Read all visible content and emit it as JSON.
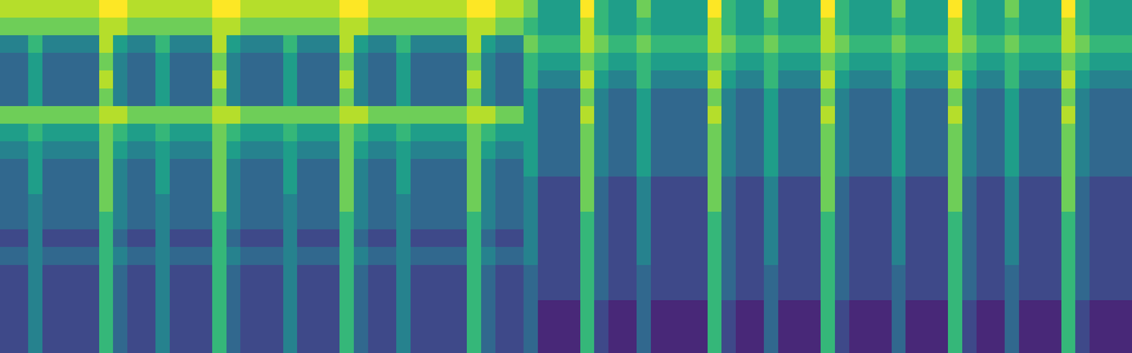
{
  "chart_data": {
    "type": "heatmap",
    "color": "viridis",
    "tick_labels": false,
    "zlim": [
      0,
      9
    ],
    "values": [
      [
        8,
        8,
        8,
        8,
        8,
        8,
        8,
        9,
        9,
        8,
        8,
        8,
        8,
        8,
        8,
        9,
        9,
        8,
        8,
        8,
        8,
        8,
        8,
        8,
        9,
        9,
        8,
        8,
        8,
        8,
        8,
        8,
        8,
        9,
        9,
        8,
        8,
        7,
        5,
        5,
        5,
        9,
        6,
        5,
        5,
        7,
        5,
        5,
        5,
        5,
        9,
        6,
        5,
        5,
        7,
        5,
        5,
        5,
        9,
        6,
        5,
        5,
        5,
        7,
        5,
        5,
        5,
        9,
        6,
        5,
        5,
        7,
        5,
        5,
        5,
        9,
        6,
        5,
        5,
        5
      ],
      [
        7,
        7,
        7,
        7,
        7,
        7,
        7,
        8,
        8,
        7,
        7,
        7,
        7,
        7,
        7,
        8,
        8,
        7,
        7,
        7,
        7,
        7,
        7,
        7,
        8,
        8,
        7,
        7,
        7,
        7,
        7,
        7,
        7,
        8,
        8,
        7,
        7,
        6,
        5,
        5,
        5,
        8,
        6,
        5,
        5,
        6,
        5,
        5,
        5,
        5,
        8,
        6,
        5,
        5,
        6,
        5,
        5,
        5,
        8,
        6,
        5,
        5,
        5,
        6,
        5,
        5,
        5,
        8,
        6,
        5,
        5,
        6,
        5,
        5,
        5,
        8,
        6,
        5,
        5,
        5
      ],
      [
        4,
        4,
        6,
        4,
        4,
        4,
        4,
        8,
        5,
        4,
        4,
        6,
        4,
        4,
        4,
        8,
        5,
        4,
        4,
        4,
        6,
        4,
        4,
        4,
        8,
        5,
        4,
        4,
        6,
        4,
        4,
        4,
        4,
        8,
        5,
        4,
        4,
        7,
        6,
        6,
        6,
        8,
        7,
        6,
        6,
        7,
        6,
        6,
        6,
        6,
        8,
        7,
        6,
        6,
        7,
        6,
        6,
        6,
        8,
        7,
        6,
        6,
        6,
        7,
        6,
        6,
        6,
        8,
        7,
        6,
        6,
        7,
        6,
        6,
        6,
        8,
        7,
        6,
        6,
        6
      ],
      [
        3,
        3,
        5,
        3,
        3,
        3,
        3,
        7,
        4,
        3,
        3,
        5,
        3,
        3,
        3,
        7,
        4,
        3,
        3,
        3,
        5,
        3,
        3,
        3,
        7,
        4,
        3,
        3,
        5,
        3,
        3,
        3,
        3,
        7,
        4,
        3,
        3,
        6,
        5,
        5,
        5,
        7,
        6,
        5,
        5,
        6,
        5,
        5,
        5,
        5,
        7,
        6,
        5,
        5,
        6,
        5,
        5,
        5,
        7,
        6,
        5,
        5,
        5,
        6,
        5,
        5,
        5,
        7,
        6,
        5,
        5,
        6,
        5,
        5,
        5,
        7,
        6,
        5,
        5,
        5
      ],
      [
        3,
        3,
        5,
        3,
        3,
        3,
        3,
        8,
        4,
        3,
        3,
        5,
        3,
        3,
        3,
        8,
        4,
        3,
        3,
        3,
        5,
        3,
        3,
        3,
        8,
        4,
        3,
        3,
        5,
        3,
        3,
        3,
        3,
        8,
        4,
        3,
        3,
        6,
        4,
        4,
        4,
        8,
        5,
        4,
        4,
        6,
        4,
        4,
        4,
        4,
        8,
        5,
        4,
        4,
        6,
        4,
        4,
        4,
        8,
        5,
        4,
        4,
        4,
        6,
        4,
        4,
        4,
        8,
        5,
        4,
        4,
        6,
        4,
        4,
        4,
        8,
        5,
        4,
        4,
        4
      ],
      [
        3,
        3,
        5,
        3,
        3,
        3,
        3,
        7,
        4,
        3,
        3,
        5,
        3,
        3,
        3,
        7,
        4,
        3,
        3,
        3,
        5,
        3,
        3,
        3,
        7,
        4,
        3,
        3,
        5,
        3,
        3,
        3,
        3,
        7,
        4,
        3,
        3,
        5,
        3,
        3,
        3,
        7,
        4,
        3,
        3,
        5,
        3,
        3,
        3,
        3,
        7,
        4,
        3,
        3,
        5,
        3,
        3,
        3,
        7,
        4,
        3,
        3,
        3,
        5,
        3,
        3,
        3,
        7,
        4,
        3,
        3,
        5,
        3,
        3,
        3,
        7,
        4,
        3,
        3,
        3
      ],
      [
        7,
        7,
        7,
        7,
        7,
        7,
        7,
        8,
        8,
        7,
        7,
        7,
        7,
        7,
        7,
        8,
        8,
        7,
        7,
        7,
        7,
        7,
        7,
        7,
        8,
        8,
        7,
        7,
        7,
        7,
        7,
        7,
        7,
        8,
        8,
        7,
        7,
        5,
        3,
        3,
        3,
        8,
        4,
        3,
        3,
        5,
        3,
        3,
        3,
        3,
        8,
        4,
        3,
        3,
        5,
        3,
        3,
        3,
        8,
        4,
        3,
        3,
        3,
        5,
        3,
        3,
        3,
        8,
        4,
        3,
        3,
        5,
        3,
        3,
        3,
        8,
        4,
        3,
        3,
        3
      ],
      [
        5,
        5,
        6,
        5,
        5,
        5,
        5,
        7,
        6,
        5,
        5,
        6,
        5,
        5,
        5,
        7,
        6,
        5,
        5,
        5,
        6,
        5,
        5,
        5,
        7,
        6,
        5,
        5,
        6,
        5,
        5,
        5,
        5,
        7,
        6,
        5,
        5,
        5,
        3,
        3,
        3,
        7,
        4,
        3,
        3,
        5,
        3,
        3,
        3,
        3,
        7,
        4,
        3,
        3,
        5,
        3,
        3,
        3,
        7,
        4,
        3,
        3,
        3,
        5,
        3,
        3,
        3,
        7,
        4,
        3,
        3,
        5,
        3,
        3,
        3,
        7,
        4,
        3,
        3,
        3
      ],
      [
        4,
        4,
        5,
        4,
        4,
        4,
        4,
        7,
        5,
        4,
        4,
        5,
        4,
        4,
        4,
        7,
        5,
        4,
        4,
        4,
        5,
        4,
        4,
        4,
        7,
        5,
        4,
        4,
        5,
        4,
        4,
        4,
        4,
        7,
        5,
        4,
        4,
        5,
        3,
        3,
        3,
        7,
        4,
        3,
        3,
        5,
        3,
        3,
        3,
        3,
        7,
        4,
        3,
        3,
        5,
        3,
        3,
        3,
        7,
        4,
        3,
        3,
        3,
        5,
        3,
        3,
        3,
        7,
        4,
        3,
        3,
        5,
        3,
        3,
        3,
        7,
        4,
        3,
        3,
        3
      ],
      [
        3,
        3,
        5,
        3,
        3,
        3,
        3,
        7,
        4,
        3,
        3,
        5,
        3,
        3,
        3,
        7,
        4,
        3,
        3,
        3,
        5,
        3,
        3,
        3,
        7,
        4,
        3,
        3,
        5,
        3,
        3,
        3,
        3,
        7,
        4,
        3,
        3,
        5,
        3,
        3,
        3,
        7,
        4,
        3,
        3,
        5,
        3,
        3,
        3,
        3,
        7,
        4,
        3,
        3,
        5,
        3,
        3,
        3,
        7,
        4,
        3,
        3,
        3,
        5,
        3,
        3,
        3,
        7,
        4,
        3,
        3,
        5,
        3,
        3,
        3,
        7,
        4,
        3,
        3,
        3
      ],
      [
        3,
        3,
        5,
        3,
        3,
        3,
        3,
        7,
        4,
        3,
        3,
        5,
        3,
        3,
        3,
        7,
        4,
        3,
        3,
        3,
        5,
        3,
        3,
        3,
        7,
        4,
        3,
        3,
        5,
        3,
        3,
        3,
        3,
        7,
        4,
        3,
        3,
        4,
        2,
        2,
        2,
        7,
        3,
        2,
        2,
        4,
        2,
        2,
        2,
        2,
        7,
        3,
        2,
        2,
        4,
        2,
        2,
        2,
        7,
        3,
        2,
        2,
        2,
        4,
        2,
        2,
        2,
        7,
        3,
        2,
        2,
        4,
        2,
        2,
        2,
        7,
        3,
        2,
        2,
        2
      ],
      [
        3,
        3,
        4,
        3,
        3,
        3,
        3,
        7,
        4,
        3,
        3,
        4,
        3,
        3,
        3,
        7,
        4,
        3,
        3,
        3,
        4,
        3,
        3,
        3,
        7,
        4,
        3,
        3,
        4,
        3,
        3,
        3,
        3,
        7,
        4,
        3,
        3,
        4,
        2,
        2,
        2,
        7,
        3,
        2,
        2,
        4,
        2,
        2,
        2,
        2,
        7,
        3,
        2,
        2,
        4,
        2,
        2,
        2,
        7,
        3,
        2,
        2,
        2,
        4,
        2,
        2,
        2,
        7,
        3,
        2,
        2,
        4,
        2,
        2,
        2,
        7,
        3,
        2,
        2,
        2
      ],
      [
        3,
        3,
        4,
        3,
        3,
        3,
        3,
        6,
        4,
        3,
        3,
        4,
        3,
        3,
        3,
        6,
        4,
        3,
        3,
        3,
        4,
        3,
        3,
        3,
        6,
        4,
        3,
        3,
        4,
        3,
        3,
        3,
        3,
        6,
        4,
        3,
        3,
        4,
        2,
        2,
        2,
        6,
        3,
        2,
        2,
        4,
        2,
        2,
        2,
        2,
        6,
        3,
        2,
        2,
        4,
        2,
        2,
        2,
        6,
        3,
        2,
        2,
        2,
        4,
        2,
        2,
        2,
        6,
        3,
        2,
        2,
        4,
        2,
        2,
        2,
        6,
        3,
        2,
        2,
        2
      ],
      [
        2,
        2,
        4,
        2,
        2,
        2,
        2,
        6,
        3,
        2,
        2,
        4,
        2,
        2,
        2,
        6,
        3,
        2,
        2,
        2,
        4,
        2,
        2,
        2,
        6,
        3,
        2,
        2,
        4,
        2,
        2,
        2,
        2,
        6,
        3,
        2,
        2,
        4,
        2,
        2,
        2,
        6,
        3,
        2,
        2,
        4,
        2,
        2,
        2,
        2,
        6,
        3,
        2,
        2,
        4,
        2,
        2,
        2,
        6,
        3,
        2,
        2,
        2,
        4,
        2,
        2,
        2,
        6,
        3,
        2,
        2,
        4,
        2,
        2,
        2,
        6,
        3,
        2,
        2,
        2
      ],
      [
        3,
        3,
        4,
        3,
        3,
        3,
        3,
        6,
        4,
        3,
        3,
        4,
        3,
        3,
        3,
        6,
        4,
        3,
        3,
        3,
        4,
        3,
        3,
        3,
        6,
        4,
        3,
        3,
        4,
        3,
        3,
        3,
        3,
        6,
        4,
        3,
        3,
        4,
        2,
        2,
        2,
        6,
        3,
        2,
        2,
        4,
        2,
        2,
        2,
        2,
        6,
        3,
        2,
        2,
        4,
        2,
        2,
        2,
        6,
        3,
        2,
        2,
        2,
        4,
        2,
        2,
        2,
        6,
        3,
        2,
        2,
        4,
        2,
        2,
        2,
        6,
        3,
        2,
        2,
        2
      ],
      [
        2,
        2,
        4,
        2,
        2,
        2,
        2,
        6,
        3,
        2,
        2,
        4,
        2,
        2,
        2,
        6,
        3,
        2,
        2,
        2,
        4,
        2,
        2,
        2,
        6,
        3,
        2,
        2,
        4,
        2,
        2,
        2,
        2,
        6,
        3,
        2,
        2,
        3,
        2,
        2,
        2,
        6,
        3,
        2,
        2,
        3,
        2,
        2,
        2,
        2,
        6,
        3,
        2,
        2,
        3,
        2,
        2,
        2,
        6,
        3,
        2,
        2,
        2,
        3,
        2,
        2,
        2,
        6,
        3,
        2,
        2,
        3,
        2,
        2,
        2,
        6,
        3,
        2,
        2,
        2
      ],
      [
        2,
        2,
        4,
        2,
        2,
        2,
        2,
        6,
        3,
        2,
        2,
        4,
        2,
        2,
        2,
        6,
        3,
        2,
        2,
        2,
        4,
        2,
        2,
        2,
        6,
        3,
        2,
        2,
        4,
        2,
        2,
        2,
        2,
        6,
        3,
        2,
        2,
        3,
        2,
        2,
        2,
        6,
        3,
        2,
        2,
        3,
        2,
        2,
        2,
        2,
        6,
        3,
        2,
        2,
        3,
        2,
        2,
        2,
        6,
        3,
        2,
        2,
        2,
        3,
        2,
        2,
        2,
        6,
        3,
        2,
        2,
        3,
        2,
        2,
        2,
        6,
        3,
        2,
        2,
        2
      ],
      [
        2,
        2,
        4,
        2,
        2,
        2,
        2,
        6,
        3,
        2,
        2,
        4,
        2,
        2,
        2,
        6,
        3,
        2,
        2,
        2,
        4,
        2,
        2,
        2,
        6,
        3,
        2,
        2,
        4,
        2,
        2,
        2,
        2,
        6,
        3,
        2,
        2,
        3,
        1,
        1,
        1,
        6,
        2,
        1,
        1,
        3,
        1,
        1,
        1,
        1,
        6,
        2,
        1,
        1,
        3,
        1,
        1,
        1,
        6,
        2,
        1,
        1,
        1,
        3,
        1,
        1,
        1,
        6,
        2,
        1,
        1,
        3,
        1,
        1,
        1,
        6,
        2,
        1,
        1,
        1
      ],
      [
        2,
        2,
        4,
        2,
        2,
        2,
        2,
        6,
        3,
        2,
        2,
        4,
        2,
        2,
        2,
        6,
        3,
        2,
        2,
        2,
        4,
        2,
        2,
        2,
        6,
        3,
        2,
        2,
        4,
        2,
        2,
        2,
        2,
        6,
        3,
        2,
        2,
        3,
        1,
        1,
        1,
        6,
        2,
        1,
        1,
        3,
        1,
        1,
        1,
        1,
        6,
        2,
        1,
        1,
        3,
        1,
        1,
        1,
        6,
        2,
        1,
        1,
        1,
        3,
        1,
        1,
        1,
        6,
        2,
        1,
        1,
        3,
        1,
        1,
        1,
        6,
        2,
        1,
        1,
        1
      ],
      [
        2,
        2,
        4,
        2,
        2,
        2,
        2,
        6,
        3,
        2,
        2,
        4,
        2,
        2,
        2,
        6,
        3,
        2,
        2,
        2,
        4,
        2,
        2,
        2,
        6,
        3,
        2,
        2,
        4,
        2,
        2,
        2,
        2,
        6,
        3,
        2,
        2,
        3,
        1,
        1,
        1,
        6,
        2,
        1,
        1,
        3,
        1,
        1,
        1,
        1,
        6,
        2,
        1,
        1,
        3,
        1,
        1,
        1,
        6,
        2,
        1,
        1,
        1,
        3,
        1,
        1,
        1,
        6,
        2,
        1,
        1,
        3,
        1,
        1,
        1,
        6,
        2,
        1,
        1,
        1
      ]
    ]
  }
}
